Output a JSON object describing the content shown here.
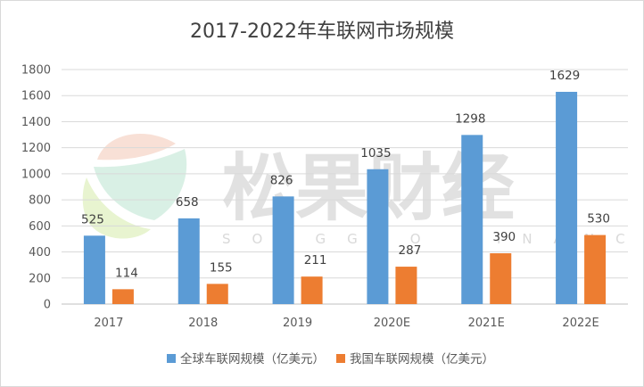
{
  "chart_data": {
    "type": "bar",
    "title": "2017-2022年车联网市场规模",
    "categories": [
      "2017",
      "2018",
      "2019",
      "2020E",
      "2021E",
      "2022E"
    ],
    "series": [
      {
        "name": "全球车联网规模（亿美元）",
        "color": "#5b9bd5",
        "values": [
          525,
          658,
          826,
          1035,
          1298,
          1629
        ]
      },
      {
        "name": "我国车联网规模（亿美元）",
        "color": "#ed7d31",
        "values": [
          114,
          155,
          211,
          287,
          390,
          530
        ]
      }
    ],
    "ylim": [
      0,
      1800
    ],
    "yticks": [
      0,
      200,
      400,
      600,
      800,
      1000,
      1200,
      1400,
      1600,
      1800
    ],
    "grid": true,
    "legend_position": "bottom",
    "data_labels": true
  },
  "watermark": {
    "text": "松果财经",
    "subtext": "SONGGUO FINANCE",
    "logo_colors": [
      "#f2c6b4",
      "#b9e3cf",
      "#d9ecb1"
    ]
  }
}
